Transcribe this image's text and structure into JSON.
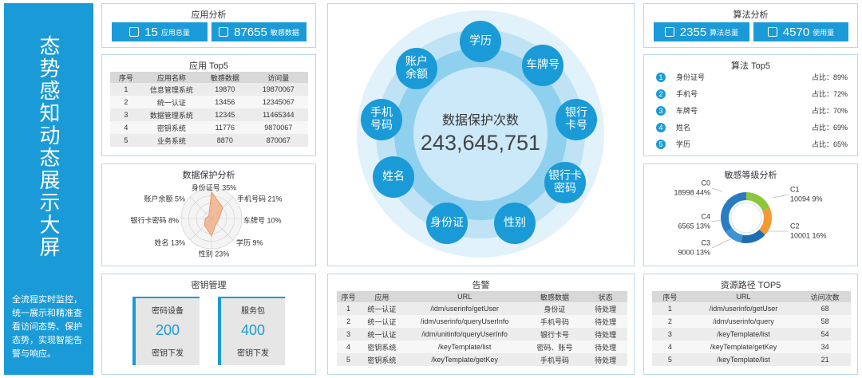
{
  "sidebar": {
    "title": "态势感知动态展示大屏",
    "description": "全流程实时监控，统一展示和精准查看访问态势、保护态势，实现智能告警与响应。"
  },
  "app_analysis": {
    "title": "应用分析",
    "stats": [
      {
        "value": 15,
        "label": "应用总量"
      },
      {
        "value": 87655,
        "label": "敏感数据"
      }
    ]
  },
  "app_top5": {
    "title": "应用 Top5",
    "table": {
      "header": [
        "序号",
        "应用名称",
        "敏感数据",
        "访问量"
      ],
      "rows": [
        [
          1,
          "信息管理系统",
          19870,
          19870067
        ],
        [
          2,
          "统一认证",
          13456,
          12345067
        ],
        [
          3,
          "数据管理系统",
          12345,
          11465344
        ],
        [
          4,
          "密钥系统",
          11776,
          9870067
        ],
        [
          5,
          "业务系统",
          8870,
          870067
        ]
      ]
    }
  },
  "data_protection": {
    "title": "数据保护分析",
    "rlim": [
      0,
      40
    ],
    "items": [
      {
        "label": "身份证号 35%",
        "value": 35
      },
      {
        "label": "手机号码 21%",
        "value": 21
      },
      {
        "label": "车牌号 10%",
        "value": 10
      },
      {
        "label": "学历 9%",
        "value": 9
      },
      {
        "label": "性别 23%",
        "value": 23
      },
      {
        "label": "姓名 13%",
        "value": 13
      },
      {
        "label": "银行卡密码 8%",
        "value": 8
      },
      {
        "label": "账户余额 5%",
        "value": 5
      }
    ]
  },
  "key_management": {
    "title": "密钥管理",
    "cards": [
      {
        "name": "密码设备",
        "value": 200,
        "action": "密钥下发"
      },
      {
        "name": "服务包",
        "value": 400,
        "action": "密钥下发"
      }
    ]
  },
  "protection_count": {
    "label": "数据保护次数",
    "value": "243,645,751",
    "types": [
      [
        "学历"
      ],
      [
        "车牌号"
      ],
      [
        "银行",
        "卡号"
      ],
      [
        "银行卡",
        "密码"
      ],
      [
        "性别"
      ],
      [
        "身份证"
      ],
      [
        "姓名"
      ],
      [
        "手机",
        "号码"
      ],
      [
        "账户",
        "余额"
      ]
    ]
  },
  "alerts": {
    "title": "告警",
    "table": {
      "header": [
        "序号",
        "应用",
        "URL",
        "敏感数据",
        "状态"
      ],
      "rows": [
        [
          1,
          "统一认证",
          "/idm/userinfo/getUser",
          "身份证",
          "待处理"
        ],
        [
          2,
          "统一认证",
          "/idm/userinfo/queryUserInfo",
          "手机号码",
          "待处理"
        ],
        [
          3,
          "统一认证",
          "/idm/unitinfo/queryUserInfo",
          "银行卡号",
          "待处理"
        ],
        [
          4,
          "密钥系统",
          "/keyTemplate/list",
          "密码、账号",
          "待处理"
        ],
        [
          5,
          "密钥系统",
          "/keyTemplate/getKey",
          "手机号码",
          "待处理"
        ]
      ]
    }
  },
  "algo_analysis": {
    "title": "算法分析",
    "stats": [
      {
        "value": 2355,
        "label": "算法总量"
      },
      {
        "value": 4570,
        "label": "使用量"
      }
    ]
  },
  "algo_top5": {
    "title": "算法 Top5",
    "rows": [
      {
        "rank": 1,
        "name": "身份证号",
        "share": "占比：89%"
      },
      {
        "rank": 2,
        "name": "手机号",
        "share": "占比：72%"
      },
      {
        "rank": 3,
        "name": "车牌号",
        "share": "占比：70%"
      },
      {
        "rank": 4,
        "name": "姓名",
        "share": "占比：69%"
      },
      {
        "rank": 5,
        "name": "学历",
        "share": "占比：65%"
      }
    ]
  },
  "sensitivity": {
    "title": "敏感等级分析",
    "items": [
      {
        "name": "C0",
        "label": "18998 44%",
        "value": 18998,
        "color": "#2a7cc2"
      },
      {
        "name": "C1",
        "label": "10094 9%",
        "value": 10094,
        "color": "#8cc63f"
      },
      {
        "name": "C2",
        "label": "10001 16%",
        "value": 10001,
        "color": "#f39a34"
      },
      {
        "name": "C3",
        "label": "9000 13%",
        "value": 9000,
        "color": "#1f6cb0"
      },
      {
        "name": "C4",
        "label": "6565 13%",
        "value": 6565,
        "color": "#3d93d3"
      }
    ]
  },
  "resource_paths": {
    "title": "资源路径 TOP5",
    "table": {
      "header": [
        "序号",
        "URL",
        "访问次数"
      ],
      "rows": [
        [
          1,
          "/idm/userinfo/getUser",
          68
        ],
        [
          2,
          "/idm/userinfo/query",
          58
        ],
        [
          3,
          "/keyTemplate/list",
          54
        ],
        [
          4,
          "/keyTemplate/getKey",
          34
        ],
        [
          5,
          "/keyTemplate/list",
          21
        ]
      ]
    }
  }
}
